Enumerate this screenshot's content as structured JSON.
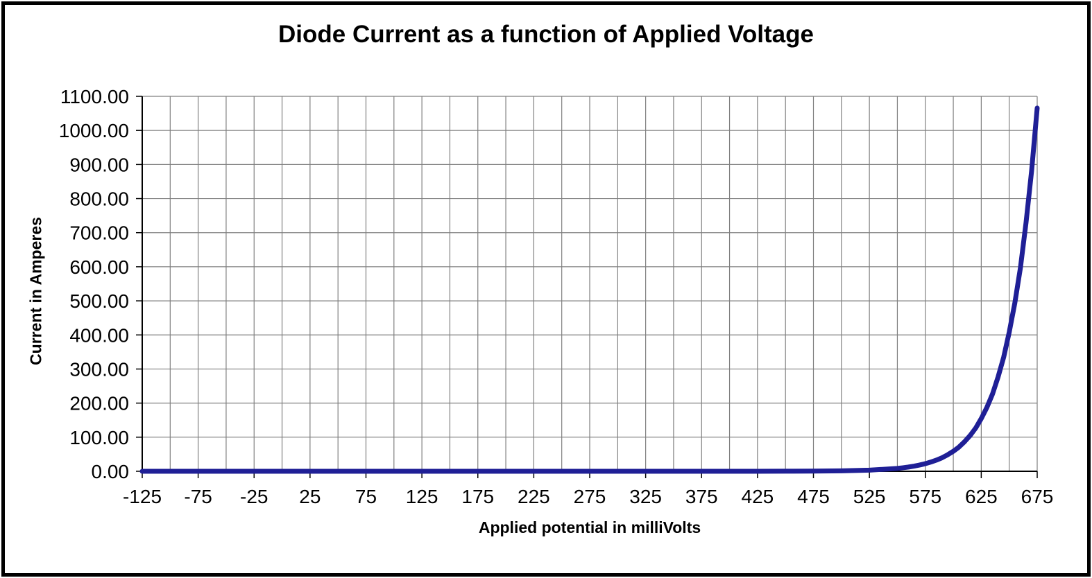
{
  "frame": {
    "border_color": "#000000",
    "background": "#ffffff"
  },
  "chart_data": {
    "type": "line",
    "title": "Diode Current as a function of Applied Voltage",
    "xlabel": "Applied potential in milliVolts",
    "ylabel": "Current in Amperes",
    "xlim": [
      -125,
      675
    ],
    "ylim": [
      0,
      1100
    ],
    "x_tick_step": 50,
    "x_grid_step": 25,
    "y_tick_step": 100,
    "x_tick_labels": [
      "-125",
      "-75",
      "-25",
      "25",
      "75",
      "125",
      "175",
      "225",
      "275",
      "325",
      "375",
      "425",
      "475",
      "525",
      "575",
      "625",
      "675"
    ],
    "y_tick_labels": [
      "0.00",
      "100.00",
      "200.00",
      "300.00",
      "400.00",
      "500.00",
      "600.00",
      "700.00",
      "800.00",
      "900.00",
      "1000.00",
      "1100.00"
    ],
    "grid": true,
    "grid_color": "#7f7f7f",
    "axis_color": "#000000",
    "tick_label_color": "#000000",
    "line_color": "#1f1f96",
    "line_width": 7,
    "legend": "none",
    "series": [
      {
        "x": [
          -125,
          -100,
          -75,
          -50,
          -25,
          0,
          25,
          50,
          75,
          100,
          125,
          150,
          175,
          200,
          225,
          250,
          275,
          300,
          325,
          350,
          375,
          400,
          425,
          450,
          475,
          500,
          525,
          550,
          555,
          560,
          565,
          570,
          575,
          580,
          585,
          590,
          595,
          600,
          605,
          610,
          615,
          620,
          625,
          630,
          635,
          640,
          645,
          650,
          655,
          660,
          665,
          670,
          675
        ],
        "y": [
          0,
          0,
          0,
          0,
          0,
          0,
          0,
          0,
          0,
          0,
          0,
          0,
          0,
          0,
          0,
          0,
          0,
          0,
          0,
          0,
          0.01,
          0.03,
          0.07,
          0.18,
          0.47,
          1.22,
          3.22,
          8.48,
          10.29,
          12.45,
          15.2,
          18.38,
          22.23,
          27.15,
          32.83,
          39.7,
          48.48,
          58.63,
          70.89,
          86.58,
          104.72,
          126.65,
          154.69,
          187.05,
          226.15,
          276.26,
          334.08,
          408.02,
          493.41,
          596.64,
          728.74,
          881.2,
          1065.71
        ]
      }
    ]
  }
}
